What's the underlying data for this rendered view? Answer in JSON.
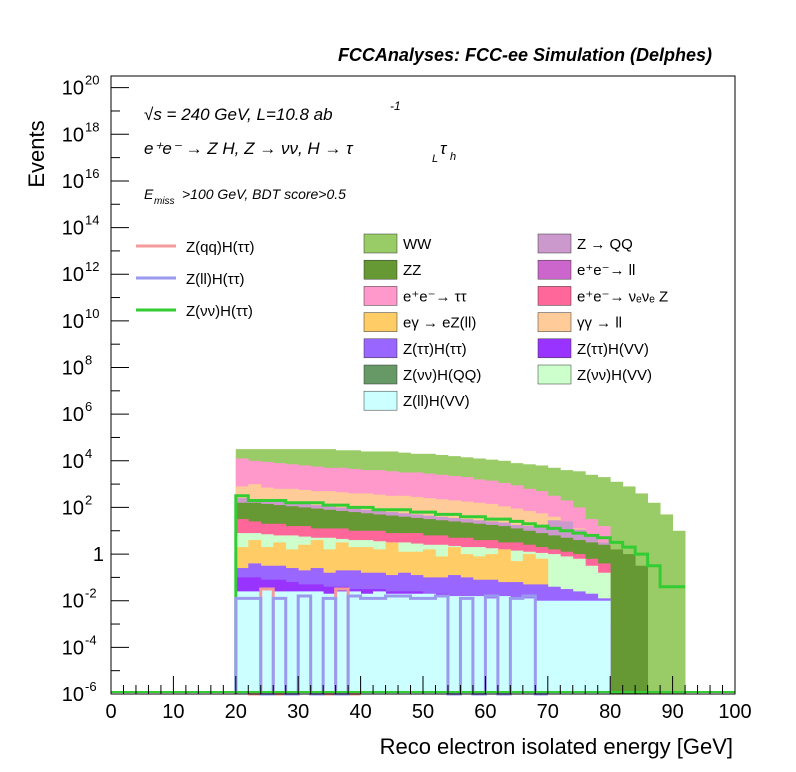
{
  "header": {
    "title": "FCCAnalyses: FCC-ee Simulation (Delphes)"
  },
  "annotations": {
    "sqrt_s": "√s = 240 GeV, L=10.8 ab",
    "lumi_exp": "-1",
    "process": "e⁺e⁻ → Z H, Z → νν, H → τ",
    "sub_L": "L",
    "tau2": "τ",
    "sub_h": "h",
    "cuts": "E",
    "cuts_sub": "miss",
    "cuts_rest": ">100 GeV, BDT score>0.5"
  },
  "legend_lines": [
    {
      "label": "Z(qq)H(ττ)",
      "color": "#f59a9a"
    },
    {
      "label": "Z(ll)H(ττ)",
      "color": "#9a9aef"
    },
    {
      "label": "Z(νν)H(ττ)",
      "color": "#33cc33"
    }
  ],
  "legend_fills": [
    {
      "label": "WW",
      "color": "#99cc66"
    },
    {
      "label": "Z → QQ",
      "color": "#cc99cc"
    },
    {
      "label": "ZZ",
      "color": "#669933"
    },
    {
      "label": "e⁺e⁻→ ll",
      "color": "#cc66cc"
    },
    {
      "label": "e⁺e⁻→ ττ",
      "color": "#ff99cc"
    },
    {
      "label": "e⁺e⁻→ νₑνₑ Z",
      "color": "#ff6699"
    },
    {
      "label": "eγ → eZ(ll)",
      "color": "#ffcc66"
    },
    {
      "label": "γγ → ll",
      "color": "#ffcc99"
    },
    {
      "label": "Z(ττ)H(ττ)",
      "color": "#9966ff"
    },
    {
      "label": "Z(ττ)H(VV)",
      "color": "#9933ff"
    },
    {
      "label": "Z(νν)H(QQ)",
      "color": "#669966"
    },
    {
      "label": "Z(νν)H(VV)",
      "color": "#ccffcc"
    },
    {
      "label": "Z(ll)H(VV)",
      "color": "#ccffff"
    }
  ],
  "chart_data": {
    "type": "bar",
    "xlabel": "Reco electron isolated energy [GeV]",
    "ylabel": "Events",
    "xlim": [
      0,
      100
    ],
    "ylim_log10": [
      -6,
      20.5
    ],
    "log_y": true,
    "x_ticks": [
      "0",
      "10",
      "20",
      "30",
      "40",
      "50",
      "60",
      "70",
      "80",
      "90",
      "100"
    ],
    "y_ticks": [
      {
        "base": "10",
        "exp": "20",
        "v": 20
      },
      {
        "base": "10",
        "exp": "18",
        "v": 18
      },
      {
        "base": "10",
        "exp": "16",
        "v": 16
      },
      {
        "base": "10",
        "exp": "14",
        "v": 14
      },
      {
        "base": "10",
        "exp": "12",
        "v": 12
      },
      {
        "base": "10",
        "exp": "10",
        "v": 10
      },
      {
        "base": "10",
        "exp": "8",
        "v": 8
      },
      {
        "base": "10",
        "exp": "6",
        "v": 6
      },
      {
        "base": "10",
        "exp": "4",
        "v": 4
      },
      {
        "base": "10",
        "exp": "2",
        "v": 2
      },
      {
        "base": "1",
        "exp": "",
        "v": 0
      },
      {
        "base": "10",
        "exp": "-2",
        "v": -2
      },
      {
        "base": "10",
        "exp": "-4",
        "v": -4
      },
      {
        "base": "10",
        "exp": "-6",
        "v": -6
      }
    ],
    "bin_edges": [
      20,
      22,
      24,
      26,
      28,
      30,
      32,
      34,
      36,
      38,
      40,
      42,
      44,
      46,
      48,
      50,
      52,
      54,
      56,
      58,
      60,
      62,
      64,
      66,
      68,
      70,
      72,
      74,
      76,
      78,
      80,
      82,
      84,
      86,
      88,
      90,
      92
    ],
    "stack_tops": [
      {
        "name": "WW",
        "color": "#99cc66",
        "log10": [
          4.5,
          4.5,
          4.5,
          4.5,
          4.5,
          4.5,
          4.5,
          4.5,
          4.45,
          4.45,
          4.4,
          4.4,
          4.4,
          4.35,
          4.3,
          4.3,
          4.25,
          4.2,
          4.15,
          4.1,
          4.05,
          4.0,
          3.9,
          3.85,
          3.8,
          3.7,
          3.6,
          3.55,
          3.4,
          3.3,
          3.1,
          2.9,
          2.6,
          2.2,
          1.7,
          1.0
        ]
      },
      {
        "name": "Z(qq)_ee_tautau_top",
        "color": "#ff99cc",
        "log10": [
          4.1,
          4.0,
          3.95,
          3.9,
          3.85,
          3.8,
          3.75,
          3.7,
          3.7,
          3.65,
          3.6,
          3.6,
          3.55,
          3.5,
          3.5,
          3.45,
          3.4,
          3.35,
          3.3,
          3.2,
          3.15,
          3.05,
          2.95,
          2.8,
          2.7,
          2.5,
          2.3,
          2.0,
          1.5,
          1.2,
          null,
          null,
          null,
          null,
          null,
          null
        ]
      },
      {
        "name": "e⁺e⁻→ ττ band",
        "color": "#ffcc99",
        "log10": [
          2.9,
          3.0,
          2.85,
          2.8,
          2.8,
          2.75,
          2.7,
          2.7,
          2.65,
          2.6,
          2.6,
          2.55,
          2.5,
          2.5,
          2.45,
          2.4,
          2.35,
          2.3,
          2.25,
          2.2,
          2.15,
          2.05,
          1.95,
          1.85,
          1.75,
          1.6,
          1.4,
          1.1,
          0.8,
          0.5,
          null,
          null,
          null,
          null,
          null,
          null
        ]
      },
      {
        "name": "Z → QQ",
        "color": "#cc99cc",
        "log10": [
          2.4,
          2.35,
          2.3,
          2.25,
          2.2,
          2.15,
          2.1,
          2.05,
          2.0,
          1.95,
          1.9,
          1.85,
          1.8,
          1.75,
          1.7,
          1.65,
          1.6,
          1.55,
          1.5,
          1.45,
          1.4,
          1.35,
          1.25,
          1.2,
          1.15,
          1.45,
          1.4,
          1.05,
          0.8,
          0.5,
          null,
          null,
          null,
          null,
          null,
          null
        ]
      },
      {
        "name": "ZZ",
        "color": "#669933",
        "log10": [
          2.2,
          2.2,
          2.15,
          2.1,
          2.05,
          2.0,
          1.95,
          1.9,
          1.85,
          1.8,
          1.75,
          1.7,
          1.65,
          1.6,
          1.55,
          1.5,
          1.45,
          1.4,
          1.35,
          1.3,
          1.25,
          1.2,
          1.1,
          1.0,
          0.9,
          0.8,
          0.7,
          0.6,
          0.5,
          0.4,
          0.2,
          0.0,
          -0.5,
          null,
          null,
          null
        ]
      },
      {
        "name": "e⁺e⁻→ νₑνₑ Z",
        "color": "#ff6699",
        "log10": [
          1.5,
          1.4,
          1.3,
          1.3,
          1.2,
          1.2,
          1.1,
          1.1,
          1.1,
          1.0,
          1.0,
          1.0,
          0.9,
          0.9,
          0.9,
          0.8,
          0.8,
          0.7,
          0.7,
          0.6,
          0.6,
          0.5,
          0.5,
          0.4,
          0.3,
          0.2,
          0.1,
          0.0,
          -0.2,
          -0.4,
          null,
          null,
          null,
          null,
          null,
          null
        ]
      },
      {
        "name": "Z(νν)H(VV)",
        "color": "#ccffcc",
        "log10": [
          0.9,
          0.9,
          0.85,
          0.8,
          0.8,
          0.75,
          0.7,
          0.7,
          0.65,
          0.6,
          0.6,
          0.55,
          0.5,
          0.5,
          0.45,
          0.4,
          0.4,
          0.35,
          0.3,
          0.3,
          0.25,
          0.2,
          0.15,
          0.1,
          0.05,
          0.0,
          -0.1,
          -0.2,
          -0.5,
          -0.8,
          null,
          null,
          null,
          null,
          null,
          null
        ]
      },
      {
        "name": "eγ → eZ(ll)",
        "color": "#ffcc66",
        "log10": [
          0.3,
          0.6,
          0.3,
          0.5,
          0.2,
          0.4,
          0.6,
          0.2,
          0.5,
          0.3,
          0.3,
          0.2,
          0.5,
          0.1,
          0.1,
          0.2,
          -0.1,
          0.3,
          0.0,
          -0.1,
          0.0,
          0.2,
          -0.3,
          0.0,
          -0.2,
          null,
          null,
          null,
          null,
          null,
          null,
          null,
          null,
          null,
          null,
          null
        ]
      },
      {
        "name": "Z(ττ)H(ττ)",
        "color": "#9966ff",
        "log10": [
          -0.6,
          -0.4,
          -0.5,
          -0.5,
          -0.6,
          -0.7,
          -0.6,
          -0.8,
          -0.7,
          -0.7,
          -0.8,
          -0.8,
          -0.9,
          -0.8,
          -0.9,
          -1.0,
          -1.0,
          -0.9,
          -1.0,
          -1.1,
          -1.1,
          -1.2,
          -1.2,
          -1.3,
          -1.3,
          -1.4,
          -1.5,
          -1.6,
          -1.7,
          -1.9,
          null,
          null,
          null,
          null,
          null,
          null
        ]
      },
      {
        "name": "Z(ττ)H(VV)",
        "color": "#9933ff",
        "log10": [
          -1.0,
          -1.0,
          -1.1,
          -1.1,
          -1.2,
          -1.3,
          -1.3,
          -1.4,
          -1.4,
          -1.5,
          -1.5,
          -1.5,
          -1.6,
          -1.6,
          -1.6,
          -1.7,
          -1.7,
          -1.8,
          -1.8,
          -1.8,
          -1.9,
          -1.9,
          -2.0,
          -2.0,
          -2.1,
          -2.2,
          -2.3,
          -2.5,
          -2.7,
          -3.0,
          null,
          null,
          null,
          null,
          null,
          null
        ]
      },
      {
        "name": "Z(ll)H(VV)",
        "color": "#ccffff",
        "log10": [
          -1.6,
          -1.6,
          -1.5,
          -1.6,
          -1.6,
          -1.6,
          -1.6,
          -1.7,
          -1.6,
          -1.6,
          -1.7,
          -1.6,
          -1.7,
          -1.7,
          -1.7,
          -1.7,
          -1.8,
          -1.8,
          -1.8,
          -1.8,
          -1.9,
          -1.8,
          -1.9,
          -1.9,
          -2.0,
          -2.0,
          -2.0,
          -2.0,
          -2.0,
          -2.0,
          null,
          null,
          null,
          null,
          null,
          null
        ]
      }
    ],
    "lines": [
      {
        "name": "Z(νν)H(ττ)",
        "color": "#33cc33",
        "log10": [
          2.5,
          2.3,
          2.3,
          2.3,
          2.2,
          2.2,
          2.2,
          2.1,
          2.1,
          2.0,
          2.0,
          1.9,
          1.9,
          1.9,
          1.8,
          1.8,
          1.7,
          1.7,
          1.6,
          1.6,
          1.5,
          1.5,
          1.4,
          1.3,
          1.2,
          1.1,
          1.0,
          0.9,
          0.8,
          0.7,
          0.5,
          0.3,
          0.0,
          -0.5,
          -1.4,
          -1.4
        ]
      },
      {
        "name": "Z(qq)H(ττ)",
        "color": "#f59a9a",
        "log10": [
          null,
          -6.2,
          -1.5,
          -6.2,
          null,
          null,
          null,
          -6.2,
          -1.5,
          -6.2,
          null,
          null,
          null,
          null,
          null,
          null,
          null,
          null,
          null,
          null,
          null,
          null,
          null,
          null,
          null,
          null,
          null,
          null,
          null,
          null,
          null,
          null,
          null,
          null,
          null,
          null
        ]
      },
      {
        "name": "Z(ll)H(ττ)",
        "color": "#9a9aef",
        "log10": [
          -1.9,
          -1.9,
          -6.2,
          -1.9,
          -6.2,
          -1.8,
          -6.2,
          -1.9,
          -6.2,
          -1.8,
          -1.9,
          -1.9,
          -1.8,
          -1.8,
          -1.9,
          -1.9,
          -1.8,
          -6.2,
          -1.9,
          -6.2,
          -1.8,
          -6.2,
          -1.9,
          -1.8,
          -6.2,
          null,
          null,
          null,
          null,
          null,
          null,
          null,
          null,
          null,
          null,
          null
        ]
      }
    ]
  }
}
